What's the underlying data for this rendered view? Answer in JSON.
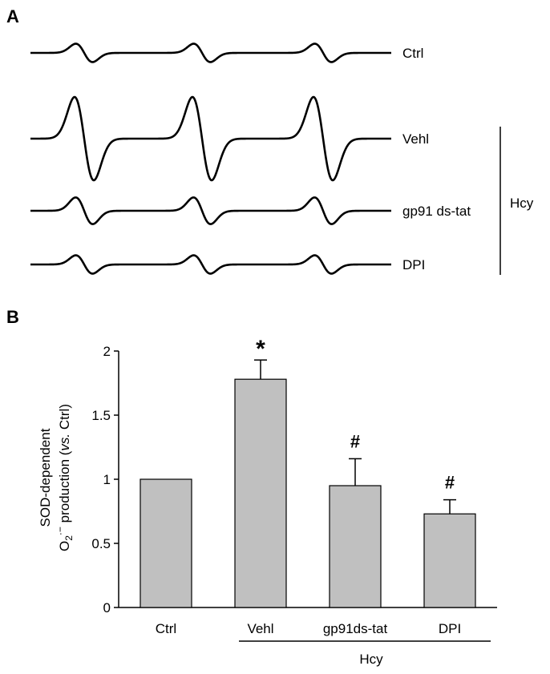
{
  "panel_a": {
    "letter": "A",
    "traces": [
      {
        "label": "Ctrl",
        "amplitude": 0.22
      },
      {
        "label": "Vehl",
        "amplitude": 1.0
      },
      {
        "label": "gp91 ds-tat",
        "amplitude": 0.32
      },
      {
        "label": "DPI",
        "amplitude": 0.22
      }
    ],
    "group_label": "Hcy"
  },
  "panel_b": {
    "letter": "B",
    "group_label": "Hcy"
  },
  "chart_data": {
    "type": "bar",
    "categories": [
      "Ctrl",
      "Vehl",
      "gp91ds-tat",
      "DPI"
    ],
    "values": [
      1.0,
      1.78,
      0.95,
      0.73
    ],
    "errors": [
      0.0,
      0.15,
      0.21,
      0.11
    ],
    "significance": [
      "",
      "*",
      "#",
      "#"
    ],
    "ylabel_line1": "SOD-dependent",
    "ylabel_line2_pre": "O",
    "ylabel_line2_sub": "2",
    "ylabel_line2_sup": "·−",
    "ylabel_line2_mid": " production (",
    "ylabel_line2_italic": "vs.",
    "ylabel_line2_post": " Ctrl)",
    "ylim": [
      0,
      2
    ],
    "yticks": [
      "0",
      "0.5",
      "1",
      "1.5",
      "2"
    ],
    "bar_color": "#c0c0c0",
    "grid": false
  }
}
